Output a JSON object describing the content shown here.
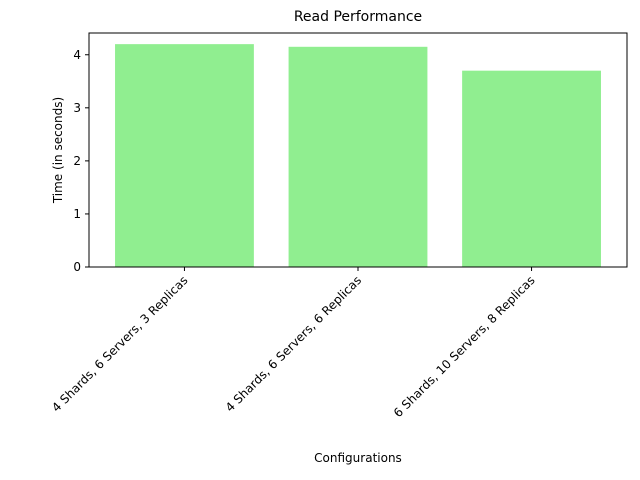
{
  "chart_data": {
    "type": "bar",
    "title": "Read Performance",
    "xlabel": "Configurations",
    "ylabel": "Time (in seconds)",
    "categories": [
      "4 Shards, 6 Servers, 3 Replicas",
      "4 Shards, 6 Servers, 6 Replicas",
      "6 Shards, 10 Servers, 8 Replicas"
    ],
    "values": [
      4.2,
      4.15,
      3.7
    ],
    "color": "#90ee90",
    "ylim": [
      0,
      4.41
    ],
    "yticks": [
      0,
      1,
      2,
      3,
      4
    ],
    "grid": false
  }
}
